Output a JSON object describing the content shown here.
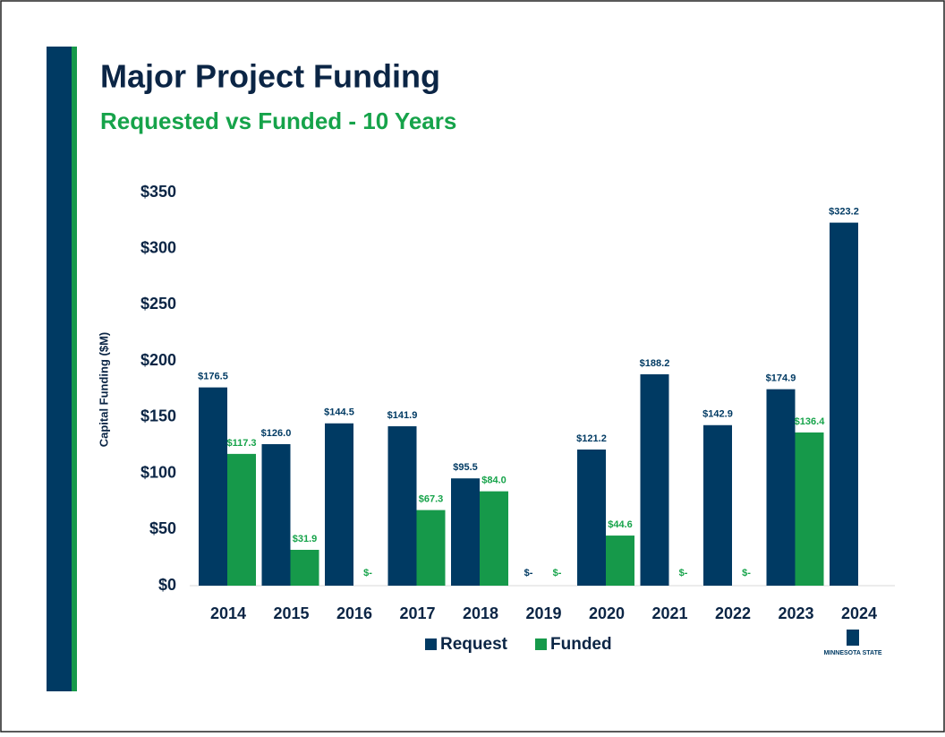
{
  "chart_data": {
    "type": "bar",
    "title": "Major Project Funding",
    "subtitle": "Requested vs Funded - 10 Years",
    "y_label": "Capital Funding ($M)",
    "logo_text": "MINNESOTA STATE",
    "categories": [
      "2014",
      "2015",
      "2016",
      "2017",
      "2018",
      "2019",
      "2020",
      "2021",
      "2022",
      "2023",
      "2024"
    ],
    "series": [
      {
        "name": "Request",
        "color": "#003a63",
        "values": [
          176.5,
          126.0,
          144.5,
          141.9,
          95.5,
          0,
          121.2,
          188.2,
          142.9,
          174.9,
          323.2
        ],
        "value_labels": [
          "$176.5",
          "$126.0",
          "$144.5",
          "$141.9",
          "$95.5",
          "$-",
          "$121.2",
          "$188.2",
          "$142.9",
          "$174.9",
          "$323.2"
        ]
      },
      {
        "name": "Funded",
        "color": "#16994a",
        "values": [
          117.3,
          31.9,
          0,
          67.3,
          84.0,
          0,
          44.6,
          0,
          0,
          136.4,
          null
        ],
        "value_labels": [
          "$117.3",
          "$31.9",
          "$-",
          "$67.3",
          "$84.0",
          "$-",
          "$44.6",
          "$-",
          "$-",
          "$136.4",
          null
        ]
      }
    ],
    "ylim": [
      0,
      350
    ],
    "yticks": [
      {
        "value": 0,
        "label": "$0"
      },
      {
        "value": 50,
        "label": "$50"
      },
      {
        "value": 100,
        "label": "$100"
      },
      {
        "value": 150,
        "label": "$150"
      },
      {
        "value": 200,
        "label": "$200"
      },
      {
        "value": 250,
        "label": "$250"
      },
      {
        "value": 300,
        "label": "$300"
      },
      {
        "value": 350,
        "label": "$350"
      }
    ],
    "legend": "bottom"
  }
}
